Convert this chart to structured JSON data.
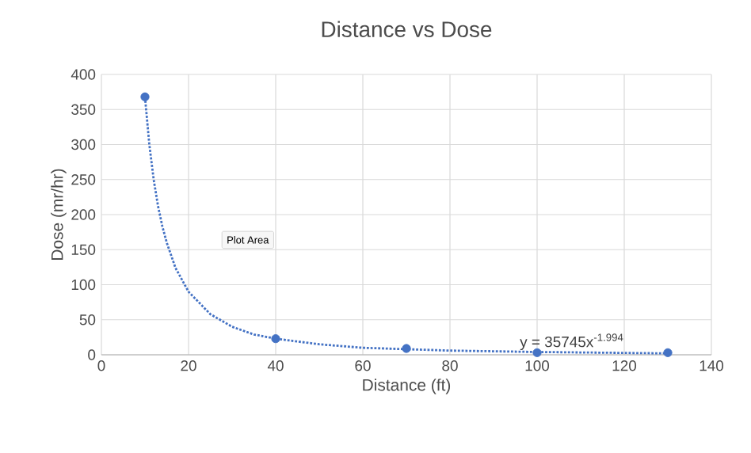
{
  "chart_data": {
    "type": "scatter",
    "title": "Distance vs Dose",
    "xlabel": "Distance (ft)",
    "ylabel": "Dose (mr/hr)",
    "xlim": [
      0,
      140
    ],
    "xticks": [
      0,
      20,
      40,
      60,
      80,
      100,
      120,
      140
    ],
    "ylim": [
      0,
      400
    ],
    "yticks": [
      0,
      50,
      100,
      150,
      200,
      250,
      300,
      350,
      400
    ],
    "grid": true,
    "marker": "circle",
    "series": [
      {
        "color": "#4472c4",
        "x": [
          10,
          40,
          70,
          100,
          130
        ],
        "values": [
          368,
          23,
          9,
          3,
          3
        ]
      },
      {
        "type": "line",
        "color": "#4472c4",
        "line_style": "dotted",
        "marker": "none",
        "x": [
          10,
          11,
          12,
          13,
          14,
          15,
          17,
          20,
          25,
          30,
          35,
          40,
          50,
          60,
          70,
          80,
          100,
          130
        ],
        "values": [
          368,
          300,
          250,
          212,
          183,
          160,
          124,
          90,
          58,
          40,
          29,
          23,
          15,
          10,
          8,
          6,
          4,
          2
        ]
      }
    ],
    "annotations": [
      "Plot Area",
      {
        "text": "y = 35745x$^{-1.994}$",
        "x": 108,
        "y": 4
      }
    ]
  }
}
